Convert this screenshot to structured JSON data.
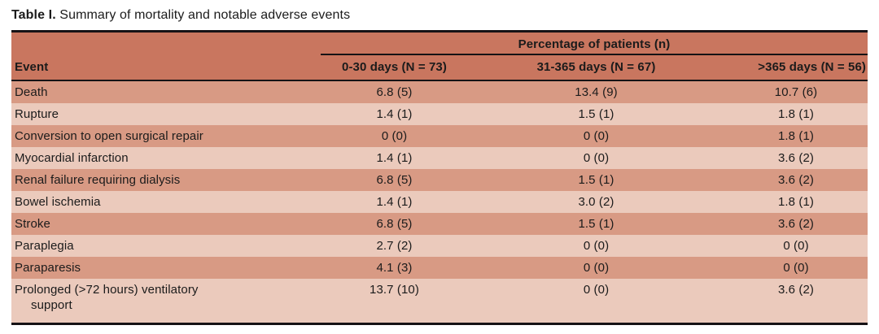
{
  "title": {
    "label": "Table I.",
    "text": "Summary of mortality and notable adverse events"
  },
  "table": {
    "group_header": "Percentage of patients (n)",
    "columns": [
      "Event",
      "0-30 days (N = 73)",
      "31-365 days (N = 67)",
      ">365 days (N = 56)"
    ],
    "rows": [
      {
        "event": "Death",
        "values": [
          "6.8 (5)",
          "13.4 (9)",
          "10.7 (6)"
        ]
      },
      {
        "event": "Rupture",
        "values": [
          "1.4 (1)",
          "1.5 (1)",
          "1.8 (1)"
        ]
      },
      {
        "event": "Conversion to open surgical repair",
        "values": [
          "0 (0)",
          "0 (0)",
          "1.8 (1)"
        ]
      },
      {
        "event": "Myocardial infarction",
        "values": [
          "1.4 (1)",
          "0 (0)",
          "3.6 (2)"
        ]
      },
      {
        "event": "Renal failure requiring dialysis",
        "values": [
          "6.8 (5)",
          "1.5 (1)",
          "3.6 (2)"
        ]
      },
      {
        "event": "Bowel ischemia",
        "values": [
          "1.4 (1)",
          "3.0 (2)",
          "1.8 (1)"
        ]
      },
      {
        "event": "Stroke",
        "values": [
          "6.8 (5)",
          "1.5 (1)",
          "3.6 (2)"
        ]
      },
      {
        "event": "Paraplegia",
        "values": [
          "2.7 (2)",
          "0 (0)",
          "0 (0)"
        ]
      },
      {
        "event": "Paraparesis",
        "values": [
          "4.1 (3)",
          "0 (0)",
          "0 (0)"
        ]
      },
      {
        "event": "Prolonged (>72 hours) ventilatory\nsupport",
        "values": [
          "13.7 (10)",
          "0 (0)",
          "3.6 (2)"
        ]
      }
    ]
  },
  "colors": {
    "header_band": "#c9765f",
    "row_dark": "#d89a84",
    "row_light": "#ebcabc",
    "rule": "#161215",
    "text": "#1b1b1b"
  }
}
